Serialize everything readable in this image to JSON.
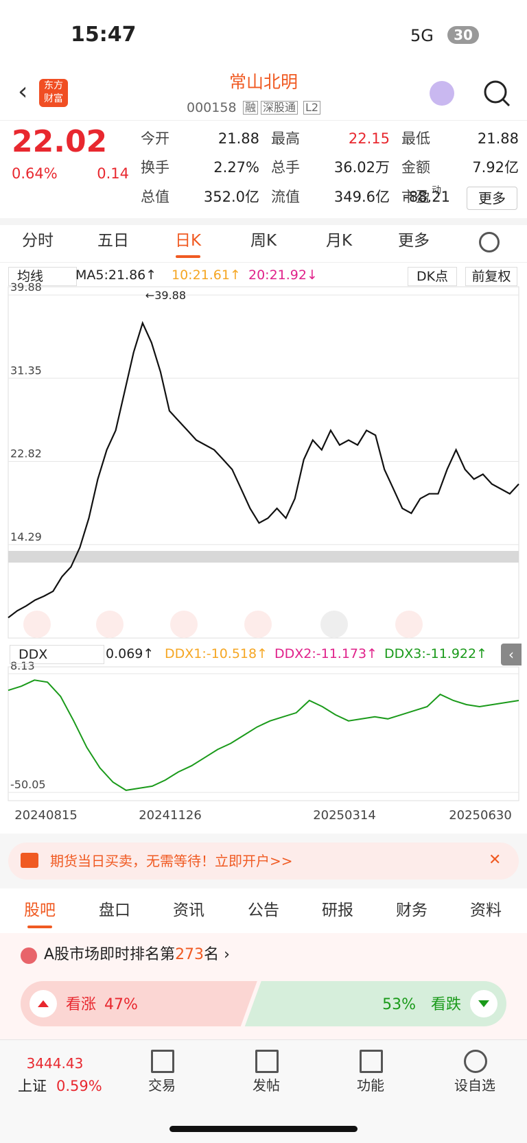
{
  "status": {
    "time": "15:47",
    "network": "5G",
    "battery": "30"
  },
  "header": {
    "logo": [
      "东方",
      "财富"
    ],
    "name": "常山北明",
    "code": "000158",
    "tags": [
      "融",
      "深股通",
      "L2"
    ]
  },
  "quote": {
    "price": "22.02",
    "pct": "0.64%",
    "change": "0.14",
    "fields": [
      {
        "label": "今开",
        "value": "21.88"
      },
      {
        "label": "最高",
        "value": "22.15"
      },
      {
        "label": "最低",
        "value": "21.88"
      },
      {
        "label": "换手",
        "value": "2.27%"
      },
      {
        "label": "总手",
        "value": "36.02万"
      },
      {
        "label": "金额",
        "value": "7.92亿"
      },
      {
        "label": "总值",
        "value": "352.0亿"
      },
      {
        "label": "流值",
        "value": "349.6亿"
      },
      {
        "label": "市盈",
        "sup": "动",
        "value": "-88.21"
      }
    ],
    "more": "更多"
  },
  "tabs": [
    "分时",
    "五日",
    "日K",
    "周K",
    "月K",
    "更多"
  ],
  "ma_bar": {
    "selector": "均线",
    "items": [
      {
        "text": "MA5:21.86↑",
        "color": "#222222"
      },
      {
        "text": "10:21.61↑",
        "color": "#f5a623"
      },
      {
        "text": "20:21.92↓",
        "color": "#e0218a"
      }
    ],
    "dk": "DK点",
    "adj": "前复权"
  },
  "kline": {
    "type": "line",
    "ylim": [
      5.76,
      39.88
    ],
    "yticks": [
      39.88,
      31.35,
      22.82,
      14.29
    ],
    "max_label": "←39.88",
    "color": "#111111",
    "values": [
      6.8,
      7.5,
      8,
      8.6,
      9,
      9.5,
      11,
      12,
      14,
      17,
      21,
      24,
      26,
      30,
      34,
      37,
      35,
      32,
      28,
      27,
      26,
      25,
      24.5,
      24,
      23,
      22,
      20,
      18,
      16.5,
      17,
      18,
      17,
      19,
      23,
      25,
      24,
      26,
      24.5,
      25,
      24.5,
      26,
      25.5,
      22,
      20,
      18,
      17.5,
      19,
      19.5,
      19.5,
      22,
      24,
      22,
      21,
      21.5,
      20.5,
      20,
      19.5,
      20.5
    ]
  },
  "ddx_bar": {
    "selector": "DDX",
    "items": [
      {
        "text": "0.069↑",
        "color": "#222222"
      },
      {
        "text": "DDX1:-10.518↑",
        "color": "#f5a623"
      },
      {
        "text": "DDX2:-11.173↑",
        "color": "#e0218a"
      },
      {
        "text": "DDX3:-11.922↑",
        "color": "#1a9a1a"
      }
    ]
  },
  "ddx": {
    "type": "line",
    "ylim": [
      -50.05,
      8.13
    ],
    "yticks": [
      8.13,
      -50.05
    ],
    "color": "#1a9a1a",
    "values": [
      0,
      2,
      5,
      4,
      -3,
      -15,
      -28,
      -38,
      -45,
      -49,
      -48,
      -47,
      -44,
      -40,
      -37,
      -33,
      -29,
      -26,
      -22,
      -18,
      -15,
      -13,
      -11,
      -5,
      -8,
      -12,
      -15,
      -14,
      -13,
      -14,
      -12,
      -10,
      -8,
      -2,
      -5,
      -7,
      -8,
      -7,
      -6,
      -5
    ],
    "categories": [
      "20240815",
      "20241126",
      "20250314",
      "20250630"
    ]
  },
  "banner": "期货当日买卖，无需等待！立即开户>>",
  "sub_tabs": [
    "股吧",
    "盘口",
    "资讯",
    "公告",
    "研报",
    "财务",
    "资料"
  ],
  "rank": {
    "prefix": "A股市场即时排名第",
    "number": "273",
    "suffix": "名"
  },
  "sentiment": {
    "bull": {
      "label": "看涨",
      "value": 47,
      "value_label": "47%"
    },
    "bear": {
      "label": "看跌",
      "value": 53,
      "value_label": "53%"
    }
  },
  "nav": {
    "index_value": "3444.43",
    "index_name": "上证",
    "index_pct": "0.59%",
    "items": [
      "交易",
      "发帖",
      "功能",
      "设自选"
    ]
  }
}
